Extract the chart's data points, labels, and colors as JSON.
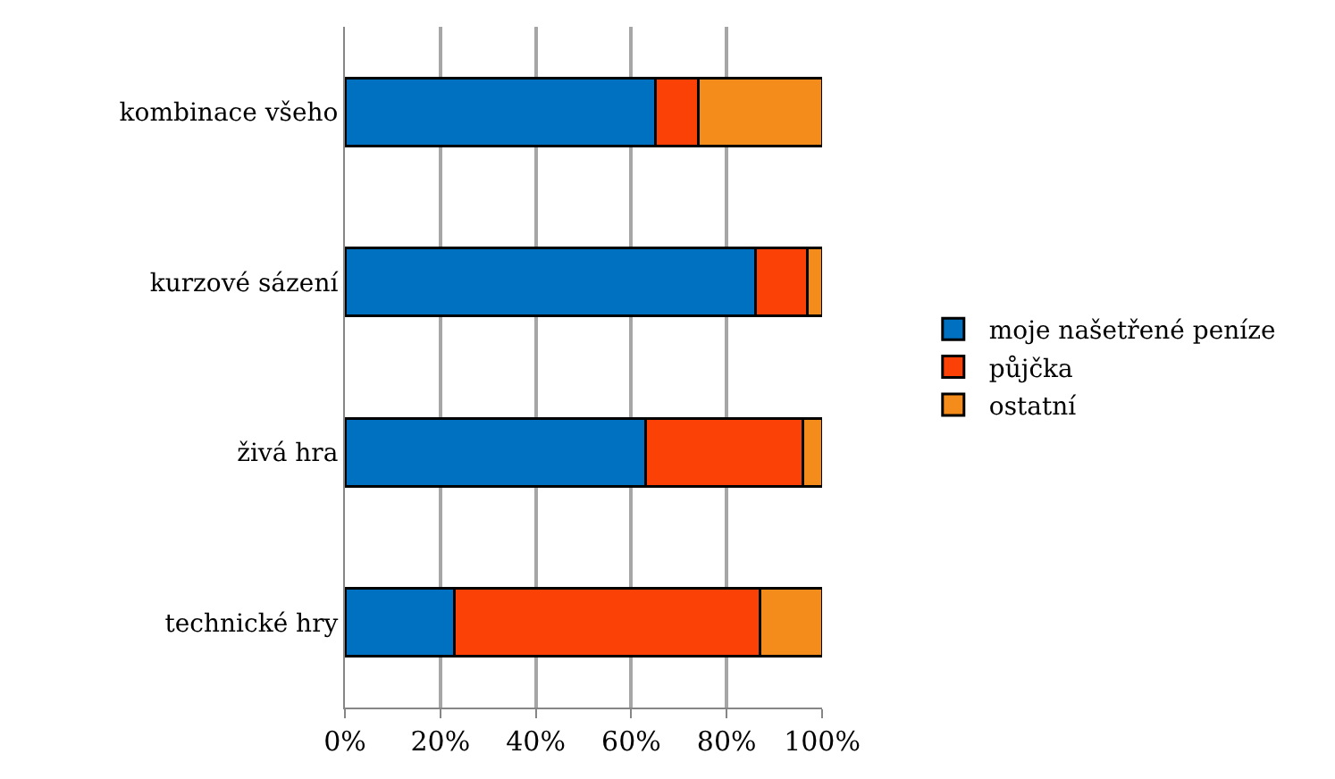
{
  "chart_data": {
    "type": "bar",
    "orientation": "horizontal",
    "stacked": true,
    "categories": [
      "kombinace všeho",
      "kurzové sázení",
      "živá hra",
      "technické hry"
    ],
    "series": [
      {
        "name": "moje našetřené peníze",
        "color": "#0070c0",
        "values": [
          65,
          86,
          63,
          23
        ]
      },
      {
        "name": "půjčka",
        "color": "#fc4106",
        "values": [
          9,
          11,
          33,
          64
        ]
      },
      {
        "name": "ostatní",
        "color": "#f48c1c",
        "values": [
          26,
          3,
          4,
          13
        ]
      }
    ],
    "xlim": [
      0,
      100
    ],
    "xticks": [
      {
        "value": 0,
        "label": "0%"
      },
      {
        "value": 20,
        "label": "20%"
      },
      {
        "value": 40,
        "label": "40%"
      },
      {
        "value": 60,
        "label": "60%"
      },
      {
        "value": 80,
        "label": "80%"
      },
      {
        "value": 100,
        "label": "100%"
      }
    ],
    "grid": "x",
    "legend": "right"
  }
}
